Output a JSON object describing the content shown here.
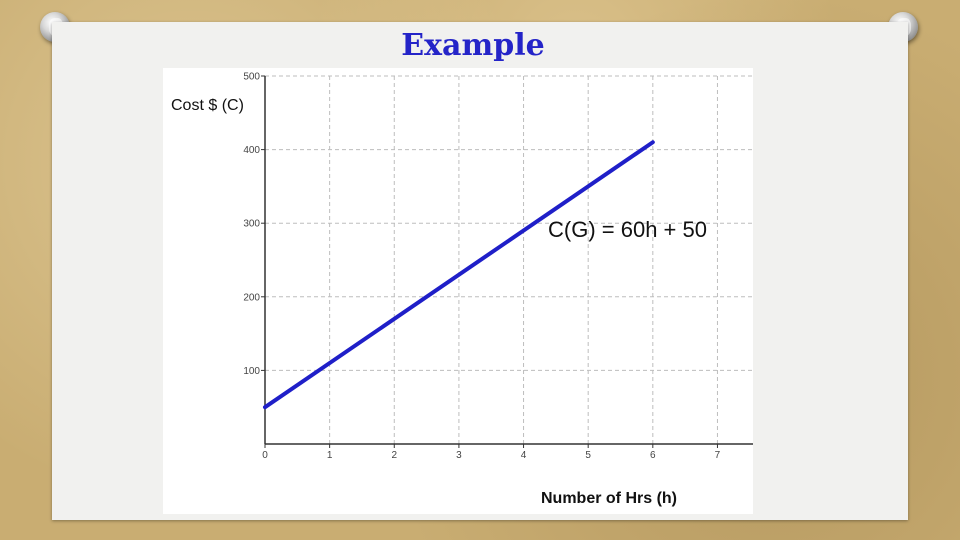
{
  "slide": {
    "title": "Example"
  },
  "chart_data": {
    "type": "line",
    "x": [
      0,
      6
    ],
    "series": [
      {
        "values": [
          50,
          410
        ],
        "color": "#1f1fc8"
      }
    ],
    "equation_label": "C(G) = 60h + 50",
    "xlabel": "Number of Hrs (h)",
    "ylabel": "Cost $ (C)",
    "xlim": [
      0,
      7.55
    ],
    "ylim": [
      0,
      500
    ],
    "x_ticks": [
      "0",
      "1",
      "2",
      "3",
      "4",
      "5",
      "6",
      "7"
    ],
    "y_ticks": [
      "100",
      "200",
      "300",
      "400",
      "500"
    ],
    "grid": true
  }
}
